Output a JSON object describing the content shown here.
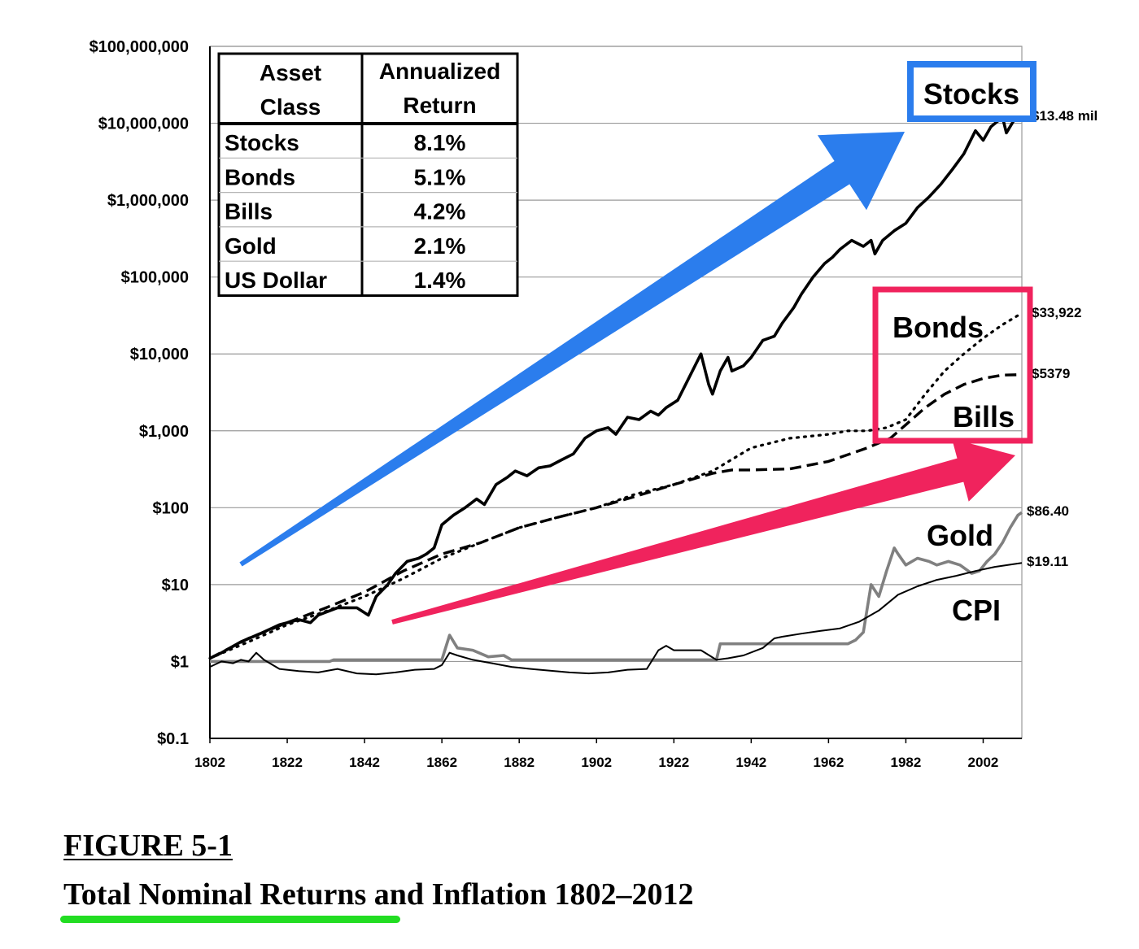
{
  "chart_data": {
    "type": "line",
    "x_range": [
      1802,
      2012
    ],
    "y_scale": "log",
    "y_range": [
      0.1,
      100000000
    ],
    "y_ticks": [
      {
        "value": 100000000,
        "label": "$100,000,000"
      },
      {
        "value": 10000000,
        "label": "$10,000,000"
      },
      {
        "value": 1000000,
        "label": "$1,000,000"
      },
      {
        "value": 100000,
        "label": "$100,000"
      },
      {
        "value": 10000,
        "label": "$10,000"
      },
      {
        "value": 1000,
        "label": "$1,000"
      },
      {
        "value": 100,
        "label": "$100"
      },
      {
        "value": 10,
        "label": "$10"
      },
      {
        "value": 1,
        "label": "$1"
      },
      {
        "value": 0.1,
        "label": "$0.1"
      }
    ],
    "x_ticks": [
      {
        "value": 1802,
        "label": "1802"
      },
      {
        "value": 1822,
        "label": "1822"
      },
      {
        "value": 1842,
        "label": "1842"
      },
      {
        "value": 1862,
        "label": "1862"
      },
      {
        "value": 1882,
        "label": "1882"
      },
      {
        "value": 1902,
        "label": "1902"
      },
      {
        "value": 1922,
        "label": "1922"
      },
      {
        "value": 1942,
        "label": "1942"
      },
      {
        "value": 1962,
        "label": "1962"
      },
      {
        "value": 1982,
        "label": "1982"
      },
      {
        "value": 2002,
        "label": "2002"
      }
    ],
    "grid": "horizontal",
    "series": [
      {
        "name": "Stocks",
        "style": "solid",
        "color": "#000000",
        "end_label": "$13.48 mil",
        "points": [
          [
            1802,
            1.1
          ],
          [
            1805,
            1.3
          ],
          [
            1810,
            1.8
          ],
          [
            1815,
            2.3
          ],
          [
            1820,
            3
          ],
          [
            1825,
            3.5
          ],
          [
            1828,
            3.2
          ],
          [
            1830,
            4
          ],
          [
            1835,
            5
          ],
          [
            1840,
            5
          ],
          [
            1843,
            4
          ],
          [
            1845,
            7
          ],
          [
            1848,
            10
          ],
          [
            1850,
            14
          ],
          [
            1853,
            20
          ],
          [
            1856,
            22
          ],
          [
            1858,
            25
          ],
          [
            1860,
            30
          ],
          [
            1862,
            60
          ],
          [
            1865,
            80
          ],
          [
            1868,
            100
          ],
          [
            1871,
            130
          ],
          [
            1873,
            110
          ],
          [
            1876,
            200
          ],
          [
            1879,
            250
          ],
          [
            1881,
            300
          ],
          [
            1884,
            260
          ],
          [
            1887,
            330
          ],
          [
            1890,
            350
          ],
          [
            1893,
            420
          ],
          [
            1896,
            500
          ],
          [
            1899,
            800
          ],
          [
            1902,
            1000
          ],
          [
            1905,
            1100
          ],
          [
            1907,
            900
          ],
          [
            1910,
            1500
          ],
          [
            1913,
            1400
          ],
          [
            1916,
            1800
          ],
          [
            1918,
            1600
          ],
          [
            1920,
            2000
          ],
          [
            1923,
            2500
          ],
          [
            1926,
            5000
          ],
          [
            1929,
            10000
          ],
          [
            1931,
            4000
          ],
          [
            1932,
            3000
          ],
          [
            1934,
            6000
          ],
          [
            1936,
            9000
          ],
          [
            1937,
            6000
          ],
          [
            1940,
            7000
          ],
          [
            1942,
            9000
          ],
          [
            1945,
            15000
          ],
          [
            1948,
            17000
          ],
          [
            1950,
            25000
          ],
          [
            1953,
            40000
          ],
          [
            1955,
            60000
          ],
          [
            1958,
            100000
          ],
          [
            1961,
            150000
          ],
          [
            1963,
            180000
          ],
          [
            1965,
            230000
          ],
          [
            1968,
            300000
          ],
          [
            1971,
            250000
          ],
          [
            1973,
            300000
          ],
          [
            1974,
            200000
          ],
          [
            1976,
            300000
          ],
          [
            1979,
            400000
          ],
          [
            1982,
            500000
          ],
          [
            1985,
            800000
          ],
          [
            1988,
            1100000
          ],
          [
            1991,
            1600000
          ],
          [
            1994,
            2500000
          ],
          [
            1997,
            4000000
          ],
          [
            2000,
            8000000
          ],
          [
            2002,
            6000000
          ],
          [
            2004,
            9000000
          ],
          [
            2007,
            12000000
          ],
          [
            2008,
            7500000
          ],
          [
            2010,
            11000000
          ],
          [
            2012,
            13480000
          ]
        ]
      },
      {
        "name": "Bonds",
        "style": "dotted",
        "color": "#000000",
        "end_label": "$33,922",
        "points": [
          [
            1802,
            1.1
          ],
          [
            1812,
            1.8
          ],
          [
            1822,
            3
          ],
          [
            1832,
            4.5
          ],
          [
            1842,
            7
          ],
          [
            1852,
            12
          ],
          [
            1862,
            22
          ],
          [
            1872,
            35
          ],
          [
            1882,
            55
          ],
          [
            1892,
            75
          ],
          [
            1902,
            100
          ],
          [
            1912,
            150
          ],
          [
            1922,
            200
          ],
          [
            1932,
            300
          ],
          [
            1942,
            600
          ],
          [
            1952,
            800
          ],
          [
            1962,
            900
          ],
          [
            1967,
            1000
          ],
          [
            1972,
            1000
          ],
          [
            1977,
            1100
          ],
          [
            1982,
            1400
          ],
          [
            1987,
            3000
          ],
          [
            1992,
            6000
          ],
          [
            1997,
            10000
          ],
          [
            2002,
            16000
          ],
          [
            2007,
            24000
          ],
          [
            2012,
            33922
          ]
        ]
      },
      {
        "name": "Bills",
        "style": "dashed",
        "color": "#000000",
        "end_label": "$5379",
        "points": [
          [
            1802,
            1.1
          ],
          [
            1812,
            2
          ],
          [
            1822,
            3.2
          ],
          [
            1832,
            5
          ],
          [
            1842,
            8
          ],
          [
            1852,
            15
          ],
          [
            1862,
            25
          ],
          [
            1872,
            35
          ],
          [
            1882,
            55
          ],
          [
            1892,
            75
          ],
          [
            1902,
            100
          ],
          [
            1912,
            140
          ],
          [
            1922,
            200
          ],
          [
            1932,
            280
          ],
          [
            1937,
            310
          ],
          [
            1942,
            310
          ],
          [
            1952,
            320
          ],
          [
            1962,
            400
          ],
          [
            1972,
            600
          ],
          [
            1978,
            800
          ],
          [
            1982,
            1200
          ],
          [
            1987,
            2000
          ],
          [
            1992,
            3000
          ],
          [
            1997,
            4000
          ],
          [
            2002,
            4800
          ],
          [
            2007,
            5300
          ],
          [
            2012,
            5379
          ]
        ]
      },
      {
        "name": "Gold",
        "style": "solid",
        "color": "#808080",
        "end_label": "$86.40",
        "points": [
          [
            1802,
            1
          ],
          [
            1833,
            1
          ],
          [
            1834,
            1.05
          ],
          [
            1862,
            1.05
          ],
          [
            1864,
            2.2
          ],
          [
            1866,
            1.5
          ],
          [
            1870,
            1.4
          ],
          [
            1874,
            1.15
          ],
          [
            1878,
            1.2
          ],
          [
            1880,
            1.05
          ],
          [
            1933,
            1.05
          ],
          [
            1934,
            1.7
          ],
          [
            1967,
            1.7
          ],
          [
            1969,
            1.9
          ],
          [
            1971,
            2.4
          ],
          [
            1973,
            10
          ],
          [
            1975,
            7
          ],
          [
            1977,
            15
          ],
          [
            1979,
            30
          ],
          [
            1980,
            25
          ],
          [
            1982,
            18
          ],
          [
            1985,
            22
          ],
          [
            1988,
            20
          ],
          [
            1990,
            18
          ],
          [
            1993,
            20
          ],
          [
            1996,
            18
          ],
          [
            1999,
            14
          ],
          [
            2001,
            15
          ],
          [
            2003,
            20
          ],
          [
            2005,
            25
          ],
          [
            2007,
            35
          ],
          [
            2009,
            55
          ],
          [
            2011,
            80
          ],
          [
            2012,
            86.4
          ]
        ]
      },
      {
        "name": "CPI",
        "style": "solid",
        "color": "#000000",
        "end_label": "$19.11",
        "points": [
          [
            1802,
            0.85
          ],
          [
            1805,
            1
          ],
          [
            1808,
            0.95
          ],
          [
            1810,
            1.05
          ],
          [
            1812,
            1
          ],
          [
            1814,
            1.3
          ],
          [
            1816,
            1.05
          ],
          [
            1820,
            0.8
          ],
          [
            1825,
            0.75
          ],
          [
            1830,
            0.72
          ],
          [
            1835,
            0.8
          ],
          [
            1840,
            0.7
          ],
          [
            1845,
            0.68
          ],
          [
            1850,
            0.72
          ],
          [
            1855,
            0.78
          ],
          [
            1860,
            0.8
          ],
          [
            1862,
            0.9
          ],
          [
            1864,
            1.3
          ],
          [
            1866,
            1.2
          ],
          [
            1870,
            1.05
          ],
          [
            1875,
            0.95
          ],
          [
            1880,
            0.85
          ],
          [
            1885,
            0.8
          ],
          [
            1890,
            0.76
          ],
          [
            1895,
            0.72
          ],
          [
            1900,
            0.7
          ],
          [
            1905,
            0.72
          ],
          [
            1910,
            0.78
          ],
          [
            1915,
            0.8
          ],
          [
            1918,
            1.4
          ],
          [
            1920,
            1.6
          ],
          [
            1922,
            1.4
          ],
          [
            1929,
            1.4
          ],
          [
            1933,
            1.05
          ],
          [
            1936,
            1.1
          ],
          [
            1940,
            1.2
          ],
          [
            1945,
            1.5
          ],
          [
            1948,
            2
          ],
          [
            1950,
            2.1
          ],
          [
            1955,
            2.3
          ],
          [
            1960,
            2.5
          ],
          [
            1965,
            2.7
          ],
          [
            1970,
            3.3
          ],
          [
            1975,
            4.6
          ],
          [
            1980,
            7.4
          ],
          [
            1985,
            9.5
          ],
          [
            1990,
            11.5
          ],
          [
            1995,
            13
          ],
          [
            2000,
            15
          ],
          [
            2005,
            17
          ],
          [
            2010,
            18.5
          ],
          [
            2012,
            19.11
          ]
        ]
      }
    ],
    "annotations": {
      "stocks": "Stocks",
      "bonds": "Bonds",
      "bills": "Bills",
      "gold": "Gold",
      "cpi": "CPI"
    },
    "table": {
      "headers": [
        "Asset Class",
        "Annualized Return"
      ],
      "rows": [
        [
          "Stocks",
          "8.1%"
        ],
        [
          "Bonds",
          "5.1%"
        ],
        [
          "Bills",
          "4.2%"
        ],
        [
          "Gold",
          "2.1%"
        ],
        [
          "US Dollar",
          "1.4%"
        ]
      ]
    },
    "colors": {
      "stocks_highlight": "#2b7ded",
      "bonds_bills_highlight": "#f0235d",
      "gold_line": "#808080",
      "underline": "#22dd22"
    }
  },
  "figure": {
    "label": "FIGURE 5-1",
    "title": "Total Nominal Returns and Inflation 1802–2012"
  }
}
